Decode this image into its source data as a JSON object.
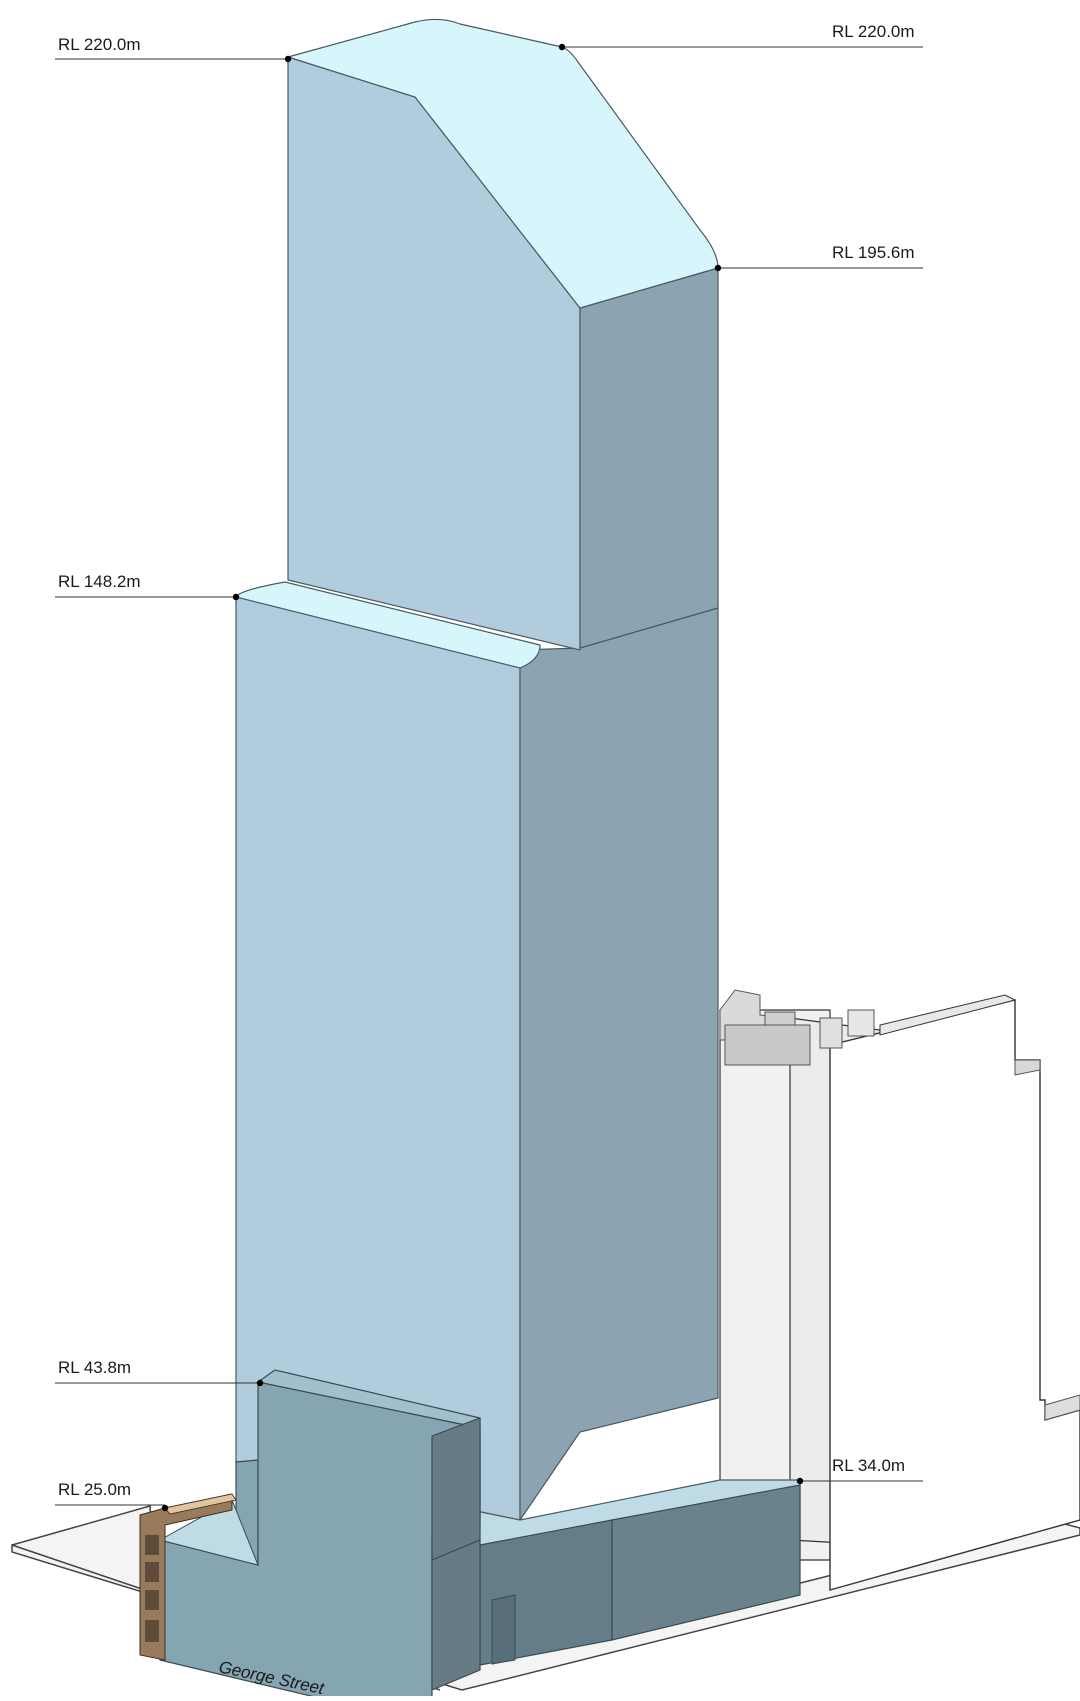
{
  "diagram": {
    "levels": [
      {
        "id": "rl-220-left",
        "label": "RL 220.0m"
      },
      {
        "id": "rl-220-right",
        "label": "RL 220.0m"
      },
      {
        "id": "rl-195",
        "label": "RL 195.6m"
      },
      {
        "id": "rl-148",
        "label": "RL 148.2m"
      },
      {
        "id": "rl-43",
        "label": "RL 43.8m"
      },
      {
        "id": "rl-34",
        "label": "RL 34.0m"
      },
      {
        "id": "rl-25",
        "label": "RL 25.0m"
      }
    ],
    "street_name": "George Street",
    "colors": {
      "tower_front": "#b1cddd",
      "tower_side": "#8ca3b1",
      "tower_top": "#d6f6fb",
      "podium_front": "#86a5b3",
      "podium_side": "#667b86",
      "podium_dark": "#647e89",
      "neighbour_fill": "#ffffff",
      "neighbour_shade": "#f0f0f0",
      "heritage": "#9a7a5c",
      "leader_line": "#333333"
    }
  }
}
